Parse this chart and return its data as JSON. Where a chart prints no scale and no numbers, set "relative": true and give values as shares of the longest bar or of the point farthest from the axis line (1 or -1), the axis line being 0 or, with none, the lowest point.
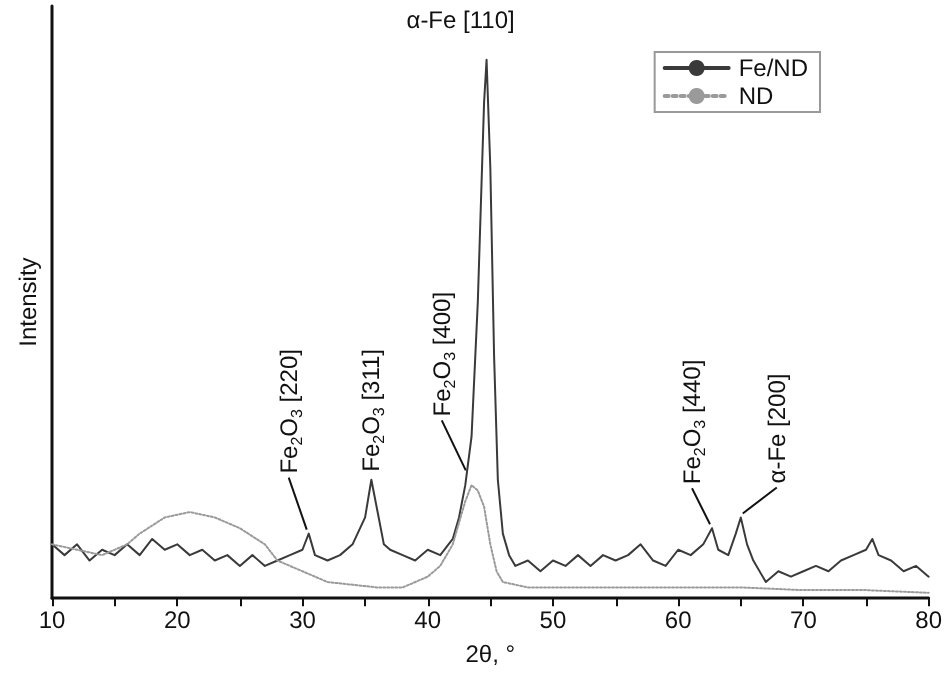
{
  "chart_data": {
    "type": "line",
    "relative": true,
    "xlabel": "2θ, °",
    "ylabel": "Intensity",
    "xlim": [
      10,
      80
    ],
    "xticks": [
      10,
      20,
      30,
      40,
      50,
      60,
      70,
      80
    ],
    "tick_labels": "x",
    "grid": false,
    "legend": "top right",
    "marker": "none",
    "series": [
      {
        "name": "Fe/ND",
        "color": "#3a3a3a",
        "line_style": "solid",
        "x": [
          10,
          11,
          12,
          13,
          14,
          15,
          16,
          17,
          18,
          19,
          20,
          21,
          22,
          23,
          24,
          25,
          26,
          27,
          28,
          29,
          30,
          30.5,
          31,
          32,
          33,
          34,
          35,
          35.5,
          36,
          36.5,
          37,
          38,
          39,
          40,
          41,
          42,
          42.5,
          43,
          43.5,
          44,
          44.5,
          44.7,
          45,
          45.3,
          45.6,
          46,
          46.5,
          47,
          48,
          49,
          50,
          51,
          52,
          53,
          54,
          55,
          56,
          57,
          58,
          59,
          60,
          61,
          62,
          62.7,
          63.2,
          64,
          64.6,
          65,
          65.5,
          66,
          67,
          68,
          69,
          70,
          71,
          72,
          73,
          74,
          75,
          75.5,
          76,
          77,
          78,
          79,
          80
        ],
        "values": [
          0.1,
          0.08,
          0.1,
          0.07,
          0.09,
          0.08,
          0.1,
          0.08,
          0.11,
          0.09,
          0.1,
          0.08,
          0.09,
          0.07,
          0.08,
          0.06,
          0.08,
          0.06,
          0.07,
          0.08,
          0.09,
          0.12,
          0.08,
          0.07,
          0.08,
          0.1,
          0.15,
          0.22,
          0.16,
          0.1,
          0.09,
          0.08,
          0.07,
          0.09,
          0.08,
          0.11,
          0.15,
          0.21,
          0.3,
          0.55,
          0.92,
          1.0,
          0.8,
          0.45,
          0.22,
          0.12,
          0.08,
          0.06,
          0.07,
          0.05,
          0.07,
          0.06,
          0.08,
          0.06,
          0.08,
          0.07,
          0.08,
          0.1,
          0.07,
          0.06,
          0.09,
          0.08,
          0.1,
          0.13,
          0.09,
          0.08,
          0.12,
          0.15,
          0.1,
          0.07,
          0.03,
          0.05,
          0.04,
          0.05,
          0.06,
          0.05,
          0.07,
          0.08,
          0.09,
          0.11,
          0.08,
          0.07,
          0.05,
          0.06,
          0.04
        ]
      },
      {
        "name": "ND",
        "color": "#9a9a9a",
        "line_style": "dotted",
        "x": [
          10,
          12,
          14,
          16,
          17,
          19,
          21,
          23,
          25,
          27,
          28,
          30,
          32,
          34,
          36,
          38,
          40,
          41,
          42,
          43,
          43.5,
          44,
          44.5,
          45,
          45.5,
          46,
          48,
          50,
          55,
          60,
          65,
          70,
          75,
          80
        ],
        "values": [
          0.1,
          0.09,
          0.08,
          0.1,
          0.12,
          0.15,
          0.16,
          0.15,
          0.13,
          0.1,
          0.07,
          0.05,
          0.03,
          0.025,
          0.02,
          0.02,
          0.04,
          0.06,
          0.1,
          0.18,
          0.21,
          0.2,
          0.17,
          0.1,
          0.05,
          0.03,
          0.02,
          0.02,
          0.02,
          0.02,
          0.02,
          0.015,
          0.015,
          0.01
        ]
      }
    ],
    "annotations": [
      {
        "text": "α-Fe [110]",
        "x": 44.7,
        "y": 1.0
      },
      {
        "text": "Fe$_{2}$O$_{3}$ [220]",
        "x": 30.5,
        "y": 0.12
      },
      {
        "text": "Fe$_{2}$O$_{3}$ [311]",
        "x": 35.5,
        "y": 0.22
      },
      {
        "text": "Fe$_{2}$O$_{3}$ [400]",
        "x": 43.2,
        "y": 0.23
      },
      {
        "text": "Fe$_{2}$O$_{3}$ [440]",
        "x": 62.7,
        "y": 0.13
      },
      {
        "text": "α-Fe [200]",
        "x": 65,
        "y": 0.15
      }
    ]
  }
}
